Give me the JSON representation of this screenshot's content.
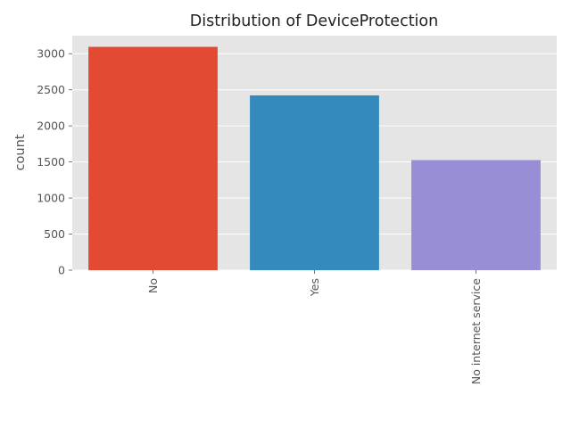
{
  "chart_data": {
    "type": "bar",
    "title": "Distribution of DeviceProtection",
    "xlabel": "",
    "ylabel": "count",
    "categories": [
      "No",
      "Yes",
      "No internet service"
    ],
    "values": [
      3095,
      2422,
      1526
    ],
    "colors": [
      "#E24A33",
      "#348ABD",
      "#988ED5"
    ],
    "ylim": [
      0,
      3250
    ],
    "yticks": [
      0,
      500,
      1000,
      1500,
      2000,
      2500,
      3000
    ],
    "grid": true,
    "background": "#E5E5E5",
    "x_tick_rotation": 90
  }
}
